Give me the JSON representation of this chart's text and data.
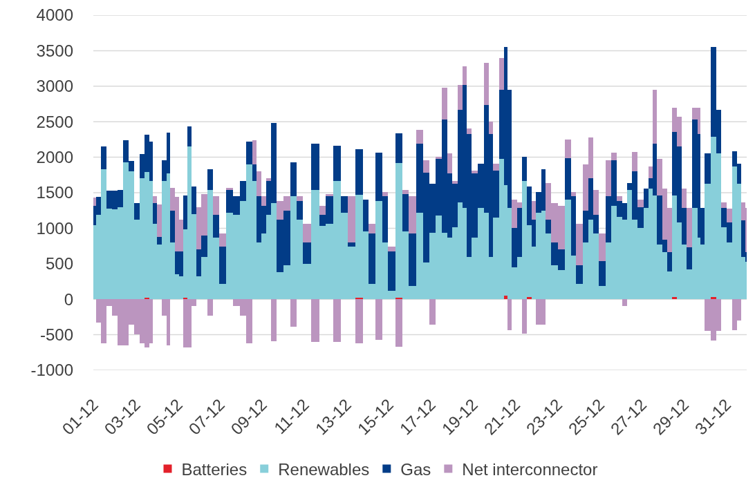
{
  "chart_data": {
    "type": "bar",
    "stacked": true,
    "grid": "y",
    "legend": "bottom",
    "xlim": [
      "--12-01T00:00",
      "--12-31T23:30"
    ],
    "xticks": [
      {
        "value": "--12-01",
        "label": "01-12"
      },
      {
        "value": "--12-03",
        "label": "03-12"
      },
      {
        "value": "--12-05",
        "label": "05-12"
      },
      {
        "value": "--12-07",
        "label": "07-12"
      },
      {
        "value": "--12-09",
        "label": "09-12"
      },
      {
        "value": "--12-11",
        "label": "11-12"
      },
      {
        "value": "--12-13",
        "label": "13-12"
      },
      {
        "value": "--12-15",
        "label": "15-12"
      },
      {
        "value": "--12-17",
        "label": "17-12"
      },
      {
        "value": "--12-19",
        "label": "19-12"
      },
      {
        "value": "--12-21",
        "label": "21-12"
      },
      {
        "value": "--12-23",
        "label": "23-12"
      },
      {
        "value": "--12-25",
        "label": "25-12"
      },
      {
        "value": "--12-27",
        "label": "27-12"
      },
      {
        "value": "--12-29",
        "label": "29-12"
      },
      {
        "value": "--12-31",
        "label": "31-12"
      }
    ],
    "ylim": [
      -1000,
      4000
    ],
    "yticks": [
      -1000,
      -500,
      0,
      500,
      1000,
      1500,
      2000,
      2500,
      3000,
      3500,
      4000
    ],
    "x": [
      "--12-01T00:00",
      "--12-01T06:00",
      "--12-01T12:00",
      "--12-01T18:00",
      "--12-02T00:00",
      "--12-02T07:00",
      "--12-02T13:00",
      "--12-02T19:00",
      "--12-03T02:00",
      "--12-03T08:00",
      "--12-03T13:00",
      "--12-03T18:00",
      "--12-03T22:00",
      "--12-04T02:00",
      "--12-04T10:00",
      "--12-04T13:00",
      "--12-04T18:00",
      "--12-04T23:00",
      "--12-05T04:00",
      "--12-05T09:00",
      "--12-05T13:00",
      "--12-05T18:00",
      "--12-06T00:00",
      "--12-06T06:00",
      "--12-06T13:00",
      "--12-06T20:00",
      "--12-07T03:00",
      "--12-07T11:00",
      "--12-07T19:00",
      "--12-08T02:00",
      "--12-08T10:00",
      "--12-08T16:00",
      "--12-08T20:00",
      "--12-09T02:00",
      "--12-09T08:00",
      "--12-09T13:00",
      "--12-09T20:00",
      "--12-10T04:00",
      "--12-10T12:00",
      "--12-10T19:00",
      "--12-11T02:00",
      "--12-11T13:00",
      "--12-11T21:00",
      "--12-12T04:00",
      "--12-12T14:00",
      "--12-12T22:00",
      "--12-13T05:00",
      "--12-13T15:00",
      "--12-13T22:00",
      "--12-14T04:00",
      "--12-14T14:00",
      "--12-14T20:00",
      "--12-15T03:00",
      "--12-15T12:00",
      "--12-15T19:00",
      "--12-16T02:00",
      "--12-16T13:00",
      "--12-16T18:00",
      "--12-17T02:00",
      "--12-17T09:00",
      "--12-17T16:00",
      "--12-17T21:00",
      "--12-18T04:00",
      "--12-18T10:00",
      "--12-18T15:00",
      "--12-18T19:00",
      "--12-19T02:00",
      "--12-19T09:00",
      "--12-19T16:00",
      "--12-19T20:00",
      "--12-20T02:00",
      "--12-20T09:00",
      "--12-20T13:00",
      "--12-20T17:00",
      "--12-20T23:00",
      "--12-21T05:00",
      "--12-21T10:00",
      "--12-21T17:00",
      "--12-21T21:00",
      "--12-22T02:00",
      "--12-22T09:00",
      "--12-22T12:00",
      "--12-22T21:00",
      "--12-23T04:00",
      "--12-23T13:00",
      "--12-23T18:00",
      "--12-24T01:00",
      "--12-24T09:00",
      "--12-24T14:00",
      "--12-24T19:00",
      "--12-25T03:00",
      "--12-25T11:00",
      "--12-25T16:00",
      "--12-25T23:00",
      "--12-26T05:00",
      "--12-26T10:00",
      "--12-26T16:00",
      "--12-26T23:00",
      "--12-27T06:00",
      "--12-27T10:00",
      "--12-27T15:00",
      "--12-27T20:00",
      "--12-28T03:00",
      "--12-28T07:00",
      "--12-28T14:00",
      "--12-28T18:00",
      "--12-29T01:00",
      "--12-29T05:00",
      "--12-29T14:00",
      "--12-29T17:00",
      "--12-29T21:00",
      "--12-30T02:00",
      "--12-30T11:00",
      "--12-30T15:00",
      "--12-30T22:00",
      "--12-31T04:00",
      "--12-31T10:00",
      "--12-31T15:00",
      "--12-31T20:00",
      "--12-31T23:30"
    ],
    "series": [
      {
        "name": "Batteries",
        "color": "#e3202a",
        "values": [
          0,
          0,
          0,
          0,
          0,
          0,
          0,
          0,
          0,
          0,
          20,
          0,
          0,
          0,
          0,
          0,
          0,
          0,
          0,
          20,
          0,
          0,
          0,
          0,
          0,
          0,
          0,
          0,
          0,
          0,
          0,
          0,
          0,
          0,
          0,
          0,
          0,
          0,
          0,
          0,
          0,
          0,
          0,
          0,
          0,
          0,
          0,
          20,
          0,
          0,
          0,
          0,
          0,
          20,
          0,
          0,
          0,
          0,
          0,
          0,
          0,
          0,
          0,
          0,
          0,
          0,
          0,
          0,
          0,
          0,
          0,
          0,
          50,
          0,
          0,
          0,
          0,
          30,
          0,
          0,
          0,
          0,
          0,
          0,
          0,
          0,
          0,
          0,
          0,
          0,
          0,
          0,
          0,
          0,
          0,
          0,
          0,
          0,
          0,
          0,
          0,
          0,
          0,
          0,
          30,
          0,
          0,
          0,
          0,
          0,
          0,
          0,
          30,
          0,
          0,
          0,
          0,
          0,
          0,
          0
        ]
      },
      {
        "name": "Renewables",
        "color": "#88cfda",
        "values": [
          1040,
          1190,
          1830,
          1280,
          1270,
          1300,
          1930,
          1800,
          1120,
          1700,
          1770,
          1670,
          1060,
          770,
          1670,
          1770,
          800,
          350,
          320,
          960,
          2150,
          1200,
          320,
          600,
          1540,
          870,
          220,
          1220,
          1190,
          1380,
          1900,
          1670,
          800,
          930,
          1190,
          1350,
          380,
          480,
          1450,
          1120,
          500,
          1540,
          1030,
          1060,
          1670,
          1220,
          740,
          1450,
          960,
          220,
          1380,
          800,
          120,
          1900,
          960,
          190,
          1220,
          520,
          940,
          1180,
          940,
          870,
          1010,
          1360,
          1290,
          600,
          870,
          1290,
          1220,
          600,
          1150,
          1980,
          1560,
          1290,
          450,
          600,
          1670,
          1010,
          740,
          1220,
          1250,
          930,
          480,
          410,
          1400,
          610,
          220,
          800,
          1120,
          930,
          190,
          800,
          1320,
          1160,
          1120,
          1540,
          1120,
          1000,
          1290,
          1560,
          1460,
          770,
          660,
          390,
          1430,
          1080,
          770,
          420,
          1290,
          870,
          770,
          1630,
          2260,
          2050,
          1010,
          800,
          1870,
          1630,
          600,
          530
        ]
      },
      {
        "name": "Gas",
        "color": "#023c87",
        "values": [
          280,
          250,
          320,
          250,
          260,
          240,
          310,
          150,
          230,
          340,
          530,
          550,
          290,
          110,
          290,
          580,
          450,
          320,
          350,
          480,
          280,
          390,
          380,
          300,
          290,
          320,
          520,
          320,
          260,
          290,
          320,
          230,
          650,
          390,
          480,
          1130,
          740,
          770,
          480,
          260,
          300,
          650,
          160,
          390,
          490,
          230,
          60,
          640,
          440,
          710,
          680,
          650,
          550,
          420,
          520,
          740,
          970,
          1260,
          690,
          800,
          1590,
          900,
          620,
          1310,
          1730,
          1730,
          900,
          620,
          1520,
          1730,
          660,
          970,
          1940,
          1660,
          550,
          690,
          340,
          550,
          380,
          290,
          580,
          190,
          320,
          290,
          590,
          840,
          260,
          450,
          580,
          260,
          350,
          650,
          640,
          220,
          230,
          100,
          680,
          300,
          270,
          140,
          730,
          690,
          180,
          270,
          900,
          1070,
          520,
          310,
          1240,
          1460,
          520,
          420,
          1260,
          620,
          280,
          280,
          210,
          280,
          510,
          130
        ]
      },
      {
        "name": "Net interconnector",
        "color": "#bb95bf",
        "values": [
          110,
          -330,
          -620,
          -100,
          -230,
          -650,
          -650,
          -360,
          -490,
          -620,
          -680,
          -620,
          100,
          450,
          -230,
          -650,
          320,
          770,
          450,
          -680,
          -680,
          -100,
          600,
          580,
          -230,
          260,
          190,
          30,
          -100,
          -230,
          -620,
          340,
          350,
          130,
          30,
          -590,
          260,
          200,
          -390,
          70,
          260,
          -600,
          130,
          30,
          -600,
          0,
          650,
          -620,
          0,
          130,
          -570,
          60,
          70,
          -670,
          60,
          520,
          200,
          180,
          -360,
          30,
          450,
          280,
          40,
          350,
          260,
          70,
          40,
          0,
          590,
          170,
          100,
          450,
          0,
          -440,
          400,
          70,
          -480,
          0,
          260,
          -360,
          -360,
          520,
          550,
          620,
          260,
          60,
          580,
          650,
          580,
          350,
          390,
          510,
          100,
          70,
          -100,
          0,
          270,
          100,
          0,
          170,
          760,
          520,
          720,
          630,
          340,
          420,
          270,
          560,
          170,
          370,
          0,
          -450,
          -580,
          -450,
          70,
          200,
          -440,
          -300,
          250,
          630
        ]
      }
    ]
  }
}
